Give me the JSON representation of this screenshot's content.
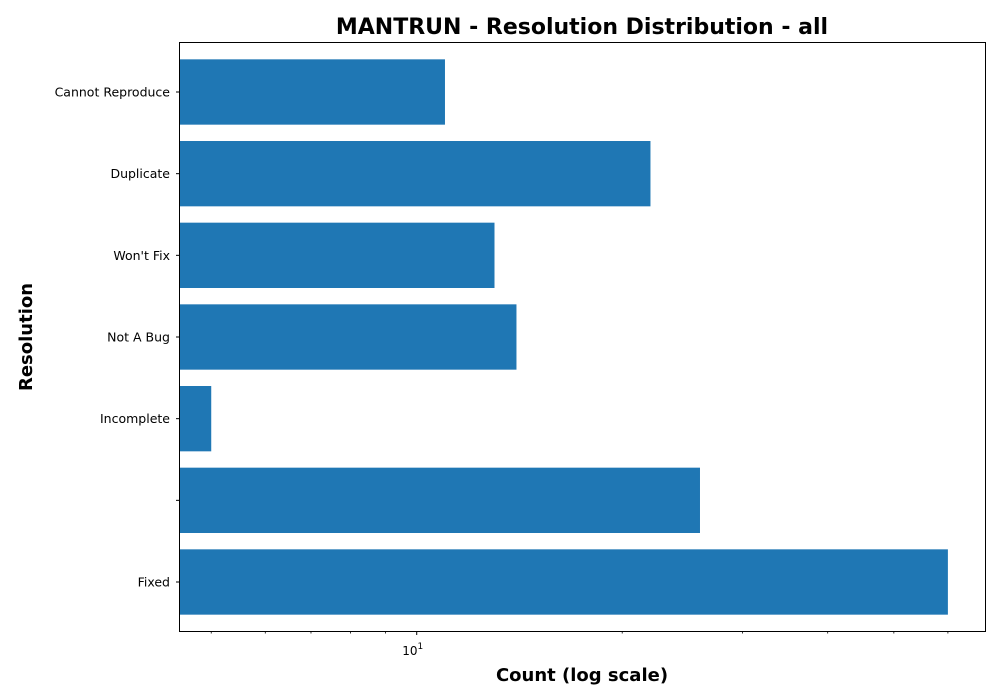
{
  "chart_data": {
    "type": "bar",
    "orientation": "horizontal",
    "title": "MANTRUN - Resolution Distribution - all",
    "xlabel": "Count (log scale)",
    "ylabel": "Resolution",
    "x_scale": "log",
    "x_major_tick_labels": [
      {
        "value": 10,
        "label": "10",
        "exponent": "1"
      }
    ],
    "categories": [
      "Cannot Reproduce",
      "Duplicate",
      "Won't Fix",
      "Not A Bug",
      "Incomplete",
      "",
      "Fixed"
    ],
    "values": [
      11,
      22,
      13,
      14,
      5,
      26,
      60
    ],
    "xlim": [
      4.5,
      68
    ],
    "bar_color": "#1f77b4",
    "grid": false,
    "legend": "none"
  }
}
